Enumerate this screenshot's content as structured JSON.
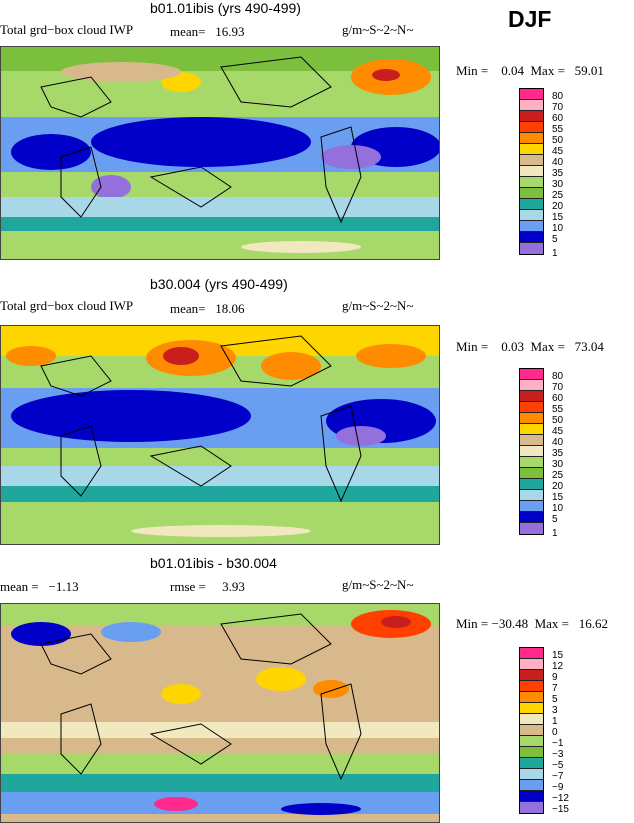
{
  "season": "DJF",
  "panels": [
    {
      "title": "b01.01ibis (yrs 490-499)",
      "left_text": "Total grd−box cloud IWP",
      "mean_text": "mean=   16.93",
      "units": "g/m~S~2~N~",
      "minmax": "Min =    0.04  Max =   59.01",
      "legend": [
        "80",
        "70",
        "60",
        "55",
        "50",
        "45",
        "40",
        "35",
        "30",
        "25",
        "20",
        "15",
        "10",
        "5",
        "1"
      ],
      "colors": [
        "#ff2a8c",
        "#ffb0c4",
        "#c81e1e",
        "#ff4000",
        "#ff8c00",
        "#ffd500",
        "#d7b98c",
        "#f2e8c0",
        "#a6d96a",
        "#7cbf3c",
        "#1fa79e",
        "#a8d8e8",
        "#6a9ef0",
        "#0000c8",
        "#9370db"
      ]
    },
    {
      "title": "b30.004 (yrs 490-499)",
      "left_text": "Total grd−box cloud IWP",
      "mean_text": "mean=   18.06",
      "units": "g/m~S~2~N~",
      "minmax": "Min =    0.03  Max =   73.04",
      "legend": [
        "80",
        "70",
        "60",
        "55",
        "50",
        "45",
        "40",
        "35",
        "30",
        "25",
        "20",
        "15",
        "10",
        "5",
        "1"
      ],
      "colors": [
        "#ff2a8c",
        "#ffb0c4",
        "#c81e1e",
        "#ff4000",
        "#ff8c00",
        "#ffd500",
        "#d7b98c",
        "#f2e8c0",
        "#a6d96a",
        "#7cbf3c",
        "#1fa79e",
        "#a8d8e8",
        "#6a9ef0",
        "#0000c8",
        "#9370db"
      ]
    },
    {
      "title": "b01.01ibis - b30.004",
      "left_text": "mean =   −1.13",
      "mean_text": "rmse =     3.93",
      "units": "g/m~S~2~N~",
      "minmax": "Min = −30.48  Max =   16.62",
      "legend": [
        "15",
        "12",
        "9",
        "7",
        "5",
        "3",
        "1",
        "0",
        "−1",
        "−3",
        "−5",
        "−7",
        "−9",
        "−12",
        "−15"
      ],
      "colors": [
        "#ff2a8c",
        "#ffb0c4",
        "#c81e1e",
        "#ff4000",
        "#ff8c00",
        "#ffd500",
        "#f2e8c0",
        "#d7b98c",
        "#a6d96a",
        "#7cbf3c",
        "#1fa79e",
        "#a8d8e8",
        "#6a9ef0",
        "#0000c8",
        "#9370db"
      ]
    }
  ]
}
